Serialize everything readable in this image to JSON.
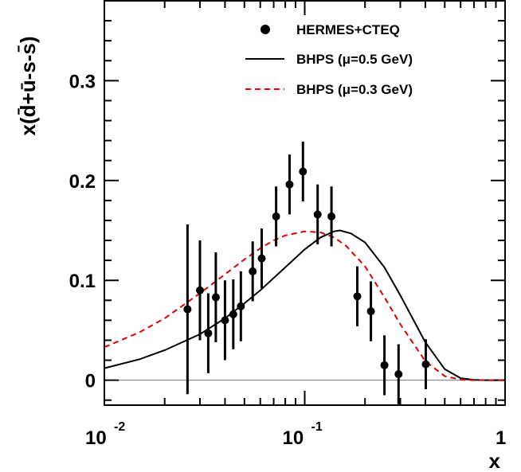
{
  "chart_data": {
    "type": "scatter",
    "xscale": "log",
    "xlim": [
      0.01,
      1
    ],
    "ylim": [
      -0.025,
      0.38
    ],
    "grid": false,
    "legend_position": "top-right",
    "xlabel": "x",
    "ylabel": "x(d̄+ū-s-s̄)",
    "x_ticks": [
      {
        "value": 0.01,
        "base": "10",
        "exp": "-2"
      },
      {
        "value": 0.1,
        "base": "10",
        "exp": "-1"
      },
      {
        "value": 1,
        "base": "1",
        "exp": ""
      }
    ],
    "y_ticks": [
      {
        "value": 0,
        "label": "0"
      },
      {
        "value": 0.1,
        "label": "0.1"
      },
      {
        "value": 0.2,
        "label": "0.2"
      },
      {
        "value": 0.3,
        "label": "0.3"
      }
    ],
    "series": [
      {
        "name": "HERMES+CTEQ",
        "kind": "points_with_errors",
        "color": "#000000",
        "points": [
          {
            "x": 0.026,
            "y": 0.071,
            "err": 0.085
          },
          {
            "x": 0.03,
            "y": 0.09,
            "err": 0.05
          },
          {
            "x": 0.033,
            "y": 0.047,
            "err": 0.04
          },
          {
            "x": 0.036,
            "y": 0.083,
            "err": 0.045
          },
          {
            "x": 0.04,
            "y": 0.06,
            "err": 0.04
          },
          {
            "x": 0.044,
            "y": 0.066,
            "err": 0.035
          },
          {
            "x": 0.048,
            "y": 0.074,
            "err": 0.035
          },
          {
            "x": 0.055,
            "y": 0.109,
            "err": 0.03
          },
          {
            "x": 0.061,
            "y": 0.122,
            "err": 0.03
          },
          {
            "x": 0.072,
            "y": 0.164,
            "err": 0.03
          },
          {
            "x": 0.084,
            "y": 0.196,
            "err": 0.03
          },
          {
            "x": 0.098,
            "y": 0.209,
            "err": 0.03
          },
          {
            "x": 0.116,
            "y": 0.166,
            "err": 0.03
          },
          {
            "x": 0.136,
            "y": 0.164,
            "err": 0.03
          },
          {
            "x": 0.183,
            "y": 0.084,
            "err": 0.03
          },
          {
            "x": 0.214,
            "y": 0.069,
            "err": 0.03
          },
          {
            "x": 0.25,
            "y": 0.015,
            "err": 0.03
          },
          {
            "x": 0.294,
            "y": 0.006,
            "err": 0.03
          },
          {
            "x": 0.402,
            "y": 0.016,
            "err": 0.025
          }
        ]
      },
      {
        "name": "BHPS (μ=0.5 GeV)",
        "kind": "line",
        "style": "solid",
        "color": "#000000",
        "x": [
          0.01,
          0.015,
          0.02,
          0.03,
          0.04,
          0.05,
          0.06,
          0.08,
          0.1,
          0.12,
          0.14,
          0.15,
          0.17,
          0.2,
          0.25,
          0.3,
          0.4,
          0.5,
          0.6,
          0.7,
          0.8,
          1.0
        ],
        "y": [
          0.012,
          0.021,
          0.03,
          0.046,
          0.062,
          0.077,
          0.09,
          0.113,
          0.131,
          0.143,
          0.149,
          0.15,
          0.147,
          0.138,
          0.113,
          0.085,
          0.038,
          0.011,
          0.002,
          0.0003,
          0.0,
          0.0
        ]
      },
      {
        "name": "BHPS (μ=0.3 GeV)",
        "kind": "line",
        "style": "dashed",
        "color": "#dd0000",
        "x": [
          0.01,
          0.015,
          0.02,
          0.03,
          0.04,
          0.05,
          0.06,
          0.07,
          0.08,
          0.1,
          0.12,
          0.14,
          0.16,
          0.2,
          0.25,
          0.3,
          0.4,
          0.5,
          0.6,
          0.7,
          0.8,
          1.0
        ],
        "y": [
          0.033,
          0.048,
          0.062,
          0.087,
          0.106,
          0.121,
          0.132,
          0.14,
          0.145,
          0.149,
          0.148,
          0.143,
          0.135,
          0.114,
          0.083,
          0.056,
          0.019,
          0.004,
          0.0005,
          0.0,
          0.0,
          0.0
        ]
      }
    ]
  }
}
